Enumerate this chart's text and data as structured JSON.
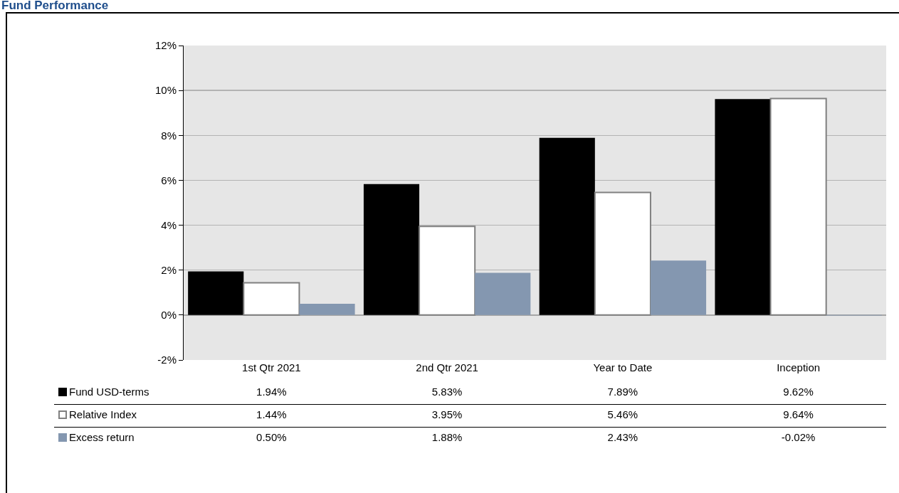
{
  "chart_data": {
    "type": "bar",
    "title": "Fund Performance",
    "categories": [
      "1st Qtr 2021",
      "2nd Qtr 2021",
      "Year to Date",
      "Inception"
    ],
    "series": [
      {
        "name": "Fund USD-terms",
        "color": "#000000",
        "values": [
          1.94,
          5.83,
          7.89,
          9.62
        ],
        "value_labels": [
          "1.94%",
          "5.83%",
          "7.89%",
          "9.62%"
        ]
      },
      {
        "name": "Relative Index",
        "color": "#ffffff",
        "values": [
          1.44,
          3.95,
          5.46,
          9.64
        ],
        "value_labels": [
          "1.44%",
          "3.95%",
          "5.46%",
          "9.64%"
        ]
      },
      {
        "name": "Excess return",
        "color": "#8497b0",
        "values": [
          0.5,
          1.88,
          2.43,
          -0.02
        ],
        "value_labels": [
          "0.50%",
          "1.88%",
          "2.43%",
          "-0.02%"
        ]
      }
    ],
    "ylim": [
      -2,
      12
    ],
    "yticks": [
      {
        "value": -2,
        "label": "-2%"
      },
      {
        "value": 0,
        "label": "0%"
      },
      {
        "value": 2,
        "label": "2%"
      },
      {
        "value": 4,
        "label": "4%"
      },
      {
        "value": 6,
        "label": "6%"
      },
      {
        "value": 8,
        "label": "8%"
      },
      {
        "value": 10,
        "label": "10%"
      },
      {
        "value": 12,
        "label": "12%"
      }
    ],
    "grid": "y",
    "legend": "bottom"
  }
}
